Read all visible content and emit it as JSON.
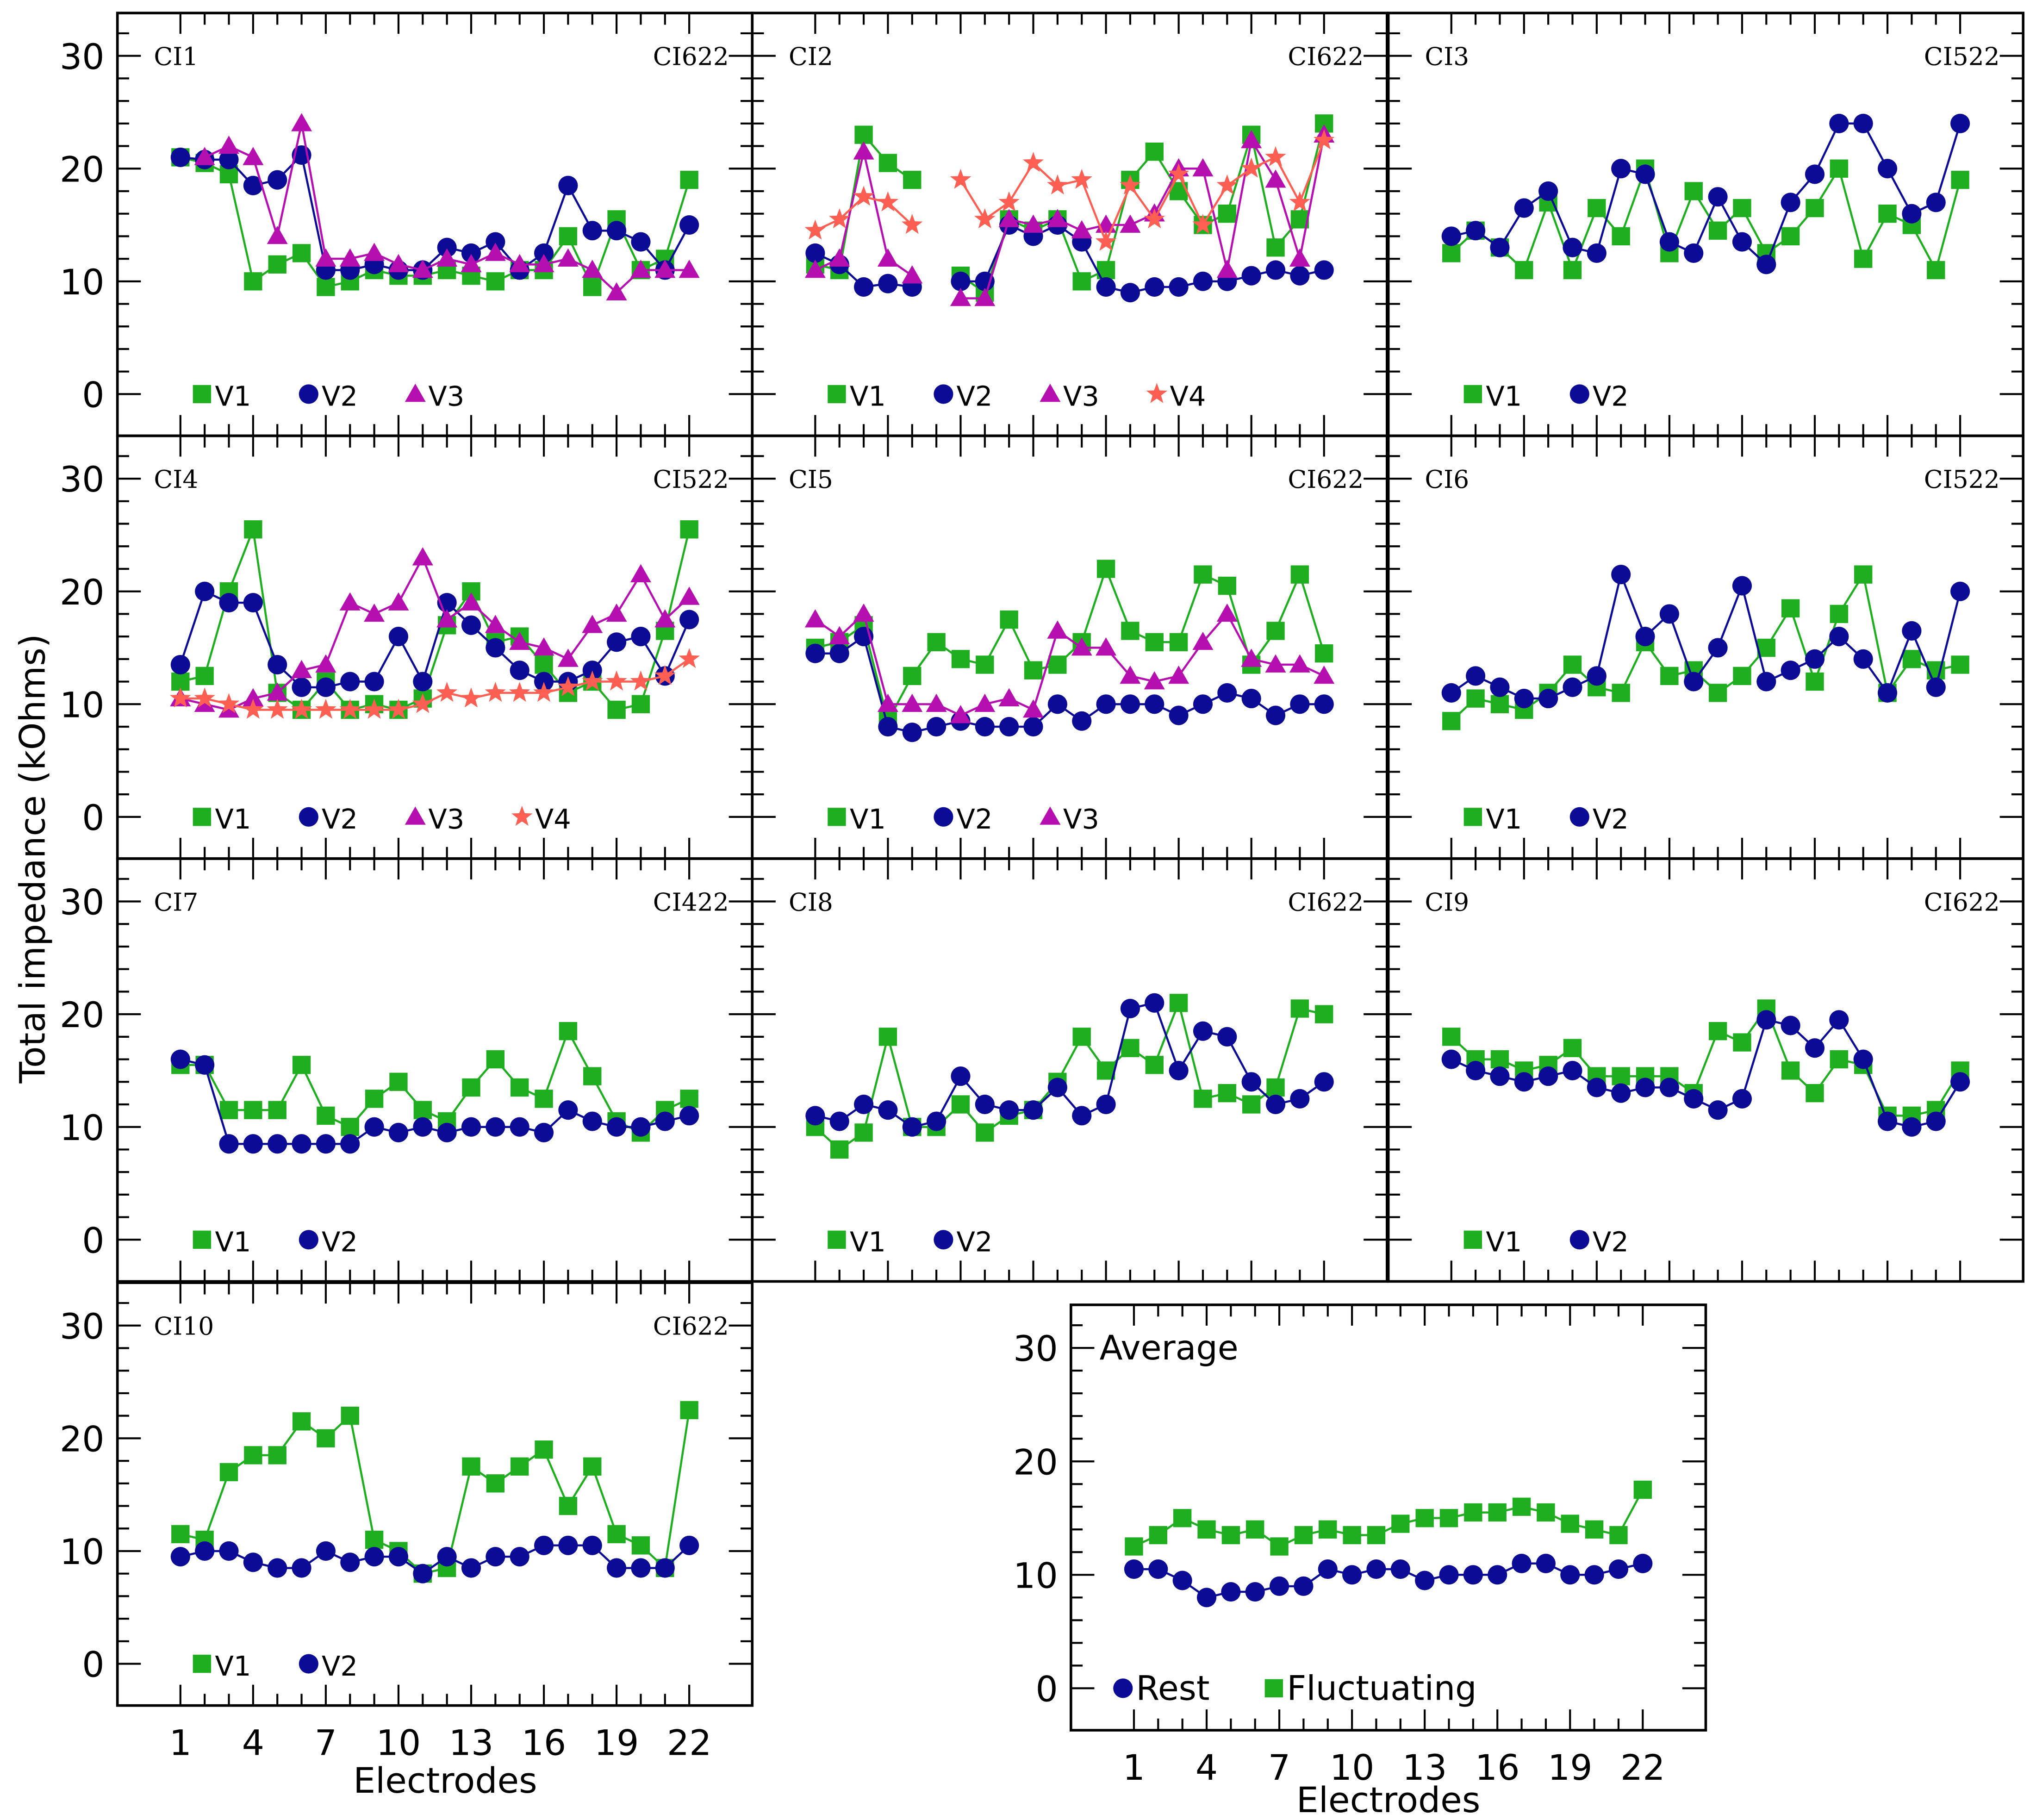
{
  "chart_data": {
    "type": "line",
    "ylabel": "Total impedance (kOhms)",
    "xlabel": "Electrodes",
    "x": [
      1,
      2,
      3,
      4,
      5,
      6,
      7,
      8,
      9,
      10,
      11,
      12,
      13,
      14,
      15,
      16,
      17,
      18,
      19,
      20,
      21,
      22
    ],
    "x_tick_labels": [
      "1",
      "4",
      "7",
      "10",
      "13",
      "16",
      "19",
      "22"
    ],
    "y_ticks": [
      0,
      10,
      20,
      30
    ],
    "ylim": [
      -3.7,
      33.8
    ],
    "xlim": [
      -1.6,
      24.6
    ],
    "colors": {
      "V1": "#1fae1f",
      "V2": "#0b0b96",
      "V3": "#b50fb0",
      "V4": "#ff5f52",
      "Rest": "#0b0b96",
      "Fluctuating": "#1fae1f"
    },
    "panels": [
      {
        "title": "CI1",
        "model": "CI622",
        "series": [
          {
            "name": "V1",
            "marker": "square",
            "values": [
              21,
              20.5,
              19.5,
              10,
              11.5,
              12.5,
              9.5,
              10,
              11,
              10.5,
              10.5,
              11,
              10.5,
              10,
              11,
              11,
              14,
              9.5,
              15.5,
              11,
              12,
              19
            ]
          },
          {
            "name": "V2",
            "marker": "circle",
            "values": [
              21,
              20.8,
              20.8,
              18.5,
              19,
              21.2,
              11,
              11,
              11.5,
              11,
              11,
              13,
              12.5,
              13.5,
              11,
              12.5,
              18.5,
              14.5,
              14.5,
              13.5,
              11,
              15
            ]
          },
          {
            "name": "V3",
            "marker": "triangle",
            "values": [
              null,
              21,
              22,
              21,
              14,
              24,
              12,
              12,
              12.5,
              11.5,
              11,
              12,
              11.5,
              12.5,
              11.5,
              11.5,
              12,
              11,
              9,
              11,
              11,
              11
            ]
          }
        ]
      },
      {
        "title": "CI2",
        "model": "CI622",
        "series": [
          {
            "name": "V1",
            "marker": "square",
            "values": [
              11.5,
              11,
              23,
              20.5,
              19,
              null,
              10.5,
              9,
              15.5,
              14.5,
              15.5,
              10,
              11,
              19,
              21.5,
              18,
              15,
              16,
              23,
              13,
              15.5,
              24
            ]
          },
          {
            "name": "V2",
            "marker": "circle",
            "values": [
              12.5,
              11.5,
              9.5,
              9.8,
              9.5,
              null,
              10,
              10,
              15,
              14,
              15,
              13.5,
              9.5,
              9,
              9.5,
              9.5,
              10,
              10,
              10.5,
              11,
              10.5,
              11
            ]
          },
          {
            "name": "V3",
            "marker": "triangle",
            "values": [
              11,
              12,
              21.5,
              12,
              10.5,
              null,
              8.5,
              8.5,
              15.5,
              15,
              15.5,
              14.5,
              15,
              15,
              16,
              20,
              20,
              11,
              22.5,
              19,
              12,
              23
            ]
          },
          {
            "name": "V4",
            "marker": "star",
            "values": [
              14.5,
              15.5,
              17.5,
              17,
              15,
              null,
              19,
              15.5,
              17,
              20.5,
              18.5,
              19,
              13.5,
              18.5,
              15.5,
              19.5,
              15,
              18.5,
              20,
              21,
              17,
              22.5
            ]
          }
        ]
      },
      {
        "title": "CI3",
        "model": "CI522",
        "series": [
          {
            "name": "V1",
            "marker": "square",
            "values": [
              12.5,
              14.5,
              13,
              11,
              17,
              11,
              16.5,
              14,
              20,
              12.5,
              18,
              14.5,
              16.5,
              12.5,
              14,
              16.5,
              20,
              12,
              16,
              15,
              11,
              19
            ]
          },
          {
            "name": "V2",
            "marker": "circle",
            "values": [
              14,
              14.5,
              13,
              16.5,
              18,
              13,
              12.5,
              20,
              19.5,
              13.5,
              12.5,
              17.5,
              13.5,
              11.5,
              17,
              19.5,
              24,
              24,
              20,
              16,
              17,
              24
            ]
          }
        ]
      },
      {
        "title": "CI4",
        "model": "CI522",
        "series": [
          {
            "name": "V1",
            "marker": "square",
            "values": [
              12,
              12.5,
              20,
              25.5,
              11,
              9.5,
              12,
              9.5,
              10,
              9.5,
              10.5,
              17,
              20,
              15.5,
              16,
              13.5,
              11,
              12,
              9.5,
              10,
              16.5,
              25.5
            ]
          },
          {
            "name": "V2",
            "marker": "circle",
            "values": [
              13.5,
              20,
              19,
              19,
              13.5,
              11.5,
              11.5,
              12,
              12,
              16,
              12,
              19,
              17,
              15,
              13,
              12,
              12,
              13,
              15.5,
              16,
              12.5,
              17.5
            ]
          },
          {
            "name": "V3",
            "marker": "triangle",
            "values": [
              10.5,
              10,
              9.5,
              10.5,
              11,
              13,
              13.5,
              19,
              18,
              19,
              23,
              17.5,
              19,
              17,
              15.5,
              15,
              14,
              17,
              18,
              21.5,
              17.5,
              19.5
            ]
          },
          {
            "name": "V4",
            "marker": "star",
            "values": [
              10.5,
              10.5,
              10,
              9.5,
              9.5,
              9.5,
              9.5,
              9.5,
              9.5,
              9.5,
              10,
              11,
              10.5,
              11,
              11,
              11,
              11.5,
              12,
              12,
              12,
              12.5,
              14
            ]
          }
        ]
      },
      {
        "title": "CI5",
        "model": "CI622",
        "series": [
          {
            "name": "V1",
            "marker": "square",
            "values": [
              15,
              15.5,
              17,
              8.5,
              12.5,
              15.5,
              14,
              13.5,
              17.5,
              13,
              13.5,
              15.5,
              22,
              16.5,
              15.5,
              15.5,
              21.5,
              20.5,
              13.5,
              16.5,
              21.5,
              14.5
            ]
          },
          {
            "name": "V2",
            "marker": "circle",
            "values": [
              14.5,
              14.5,
              16,
              8,
              7.5,
              8,
              8.5,
              8,
              8,
              8,
              10,
              8.5,
              10,
              10,
              10,
              9,
              10,
              11,
              10.5,
              9,
              10,
              10
            ]
          },
          {
            "name": "V3",
            "marker": "triangle",
            "values": [
              17.5,
              16,
              18,
              10,
              10,
              10,
              9,
              10,
              10.5,
              9.5,
              16.5,
              15,
              15,
              12.5,
              12,
              12.5,
              15.5,
              18,
              14,
              13.5,
              13.5,
              12.5
            ]
          }
        ]
      },
      {
        "title": "CI6",
        "model": "CI522",
        "series": [
          {
            "name": "V1",
            "marker": "square",
            "values": [
              8.5,
              10.5,
              10,
              9.5,
              11,
              13.5,
              11.5,
              11,
              15.5,
              12.5,
              13,
              11,
              12.5,
              15,
              18.5,
              12,
              18,
              21.5,
              11,
              14,
              13,
              13.5
            ]
          },
          {
            "name": "V2",
            "marker": "circle",
            "values": [
              11,
              12.5,
              11.5,
              10.5,
              10.5,
              11.5,
              12.5,
              21.5,
              16,
              18,
              12,
              15,
              20.5,
              12,
              13,
              14,
              16,
              14,
              11,
              16.5,
              11.5,
              20
            ]
          }
        ]
      },
      {
        "title": "CI7",
        "model": "CI422",
        "series": [
          {
            "name": "V1",
            "marker": "square",
            "values": [
              15.5,
              15.5,
              11.5,
              11.5,
              11.5,
              15.5,
              11,
              10,
              12.5,
              14,
              11.5,
              10.5,
              13.5,
              16,
              13.5,
              12.5,
              18.5,
              14.5,
              10.5,
              9.5,
              11.5,
              12.5
            ]
          },
          {
            "name": "V2",
            "marker": "circle",
            "values": [
              16,
              15.5,
              8.5,
              8.5,
              8.5,
              8.5,
              8.5,
              8.5,
              10,
              9.5,
              10,
              9.5,
              10,
              10,
              10,
              9.5,
              11.5,
              10.5,
              10,
              10,
              10.5,
              11
            ]
          }
        ]
      },
      {
        "title": "CI8",
        "model": "CI622",
        "series": [
          {
            "name": "V1",
            "marker": "square",
            "values": [
              10,
              8,
              9.5,
              18,
              10,
              10,
              12,
              9.5,
              11,
              11.5,
              14,
              18,
              15,
              17,
              15.5,
              21,
              12.5,
              13,
              12,
              13.5,
              20.5,
              20
            ]
          },
          {
            "name": "V2",
            "marker": "circle",
            "values": [
              11,
              10.5,
              12,
              11.5,
              10,
              10.5,
              14.5,
              12,
              11.5,
              11.5,
              13.5,
              11,
              12,
              20.5,
              21,
              15,
              18.5,
              18,
              14,
              12,
              12.5,
              14
            ]
          }
        ]
      },
      {
        "title": "CI9",
        "model": "CI622",
        "series": [
          {
            "name": "V1",
            "marker": "square",
            "values": [
              18,
              16,
              16,
              15,
              15.5,
              17,
              14.5,
              14.5,
              14.5,
              14.5,
              13,
              18.5,
              17.5,
              20.5,
              15,
              13,
              16,
              15.5,
              11,
              11,
              11.5,
              15
            ]
          },
          {
            "name": "V2",
            "marker": "circle",
            "values": [
              16,
              15,
              14.5,
              14,
              14.5,
              15,
              13.5,
              13,
              13.5,
              13.5,
              12.5,
              11.5,
              12.5,
              19.5,
              19,
              17,
              19.5,
              16,
              10.5,
              10,
              10.5,
              14
            ]
          }
        ]
      },
      {
        "title": "CI10",
        "model": "CI622",
        "series": [
          {
            "name": "V1",
            "marker": "square",
            "values": [
              11.5,
              11,
              17,
              18.5,
              18.5,
              21.5,
              20,
              22,
              11,
              10,
              8,
              8.5,
              17.5,
              16,
              17.5,
              19,
              14,
              17.5,
              11.5,
              10.5,
              8.5,
              22.5
            ]
          },
          {
            "name": "V2",
            "marker": "circle",
            "values": [
              9.5,
              10,
              10,
              9,
              8.5,
              8.5,
              10,
              9,
              9.5,
              9.5,
              8,
              9.5,
              8.5,
              9.5,
              9.5,
              10.5,
              10.5,
              10.5,
              8.5,
              8.5,
              8.5,
              10.5
            ]
          }
        ]
      }
    ],
    "average": {
      "title": "Average",
      "series": [
        {
          "name": "Rest",
          "marker": "circle",
          "values": [
            10.5,
            10.5,
            9.5,
            8,
            8.5,
            8.5,
            9,
            9,
            10.5,
            10,
            10.5,
            10.5,
            9.5,
            10,
            10,
            10,
            11,
            11,
            10,
            10,
            10.5,
            11
          ]
        },
        {
          "name": "Fluctuating",
          "marker": "square",
          "values": [
            12.5,
            13.5,
            15,
            14,
            13.5,
            14,
            12.5,
            13.5,
            14,
            13.5,
            13.5,
            14.5,
            15,
            15,
            15.5,
            15.5,
            16,
            15.5,
            14.5,
            14,
            13.5,
            17.5
          ]
        }
      ]
    }
  }
}
